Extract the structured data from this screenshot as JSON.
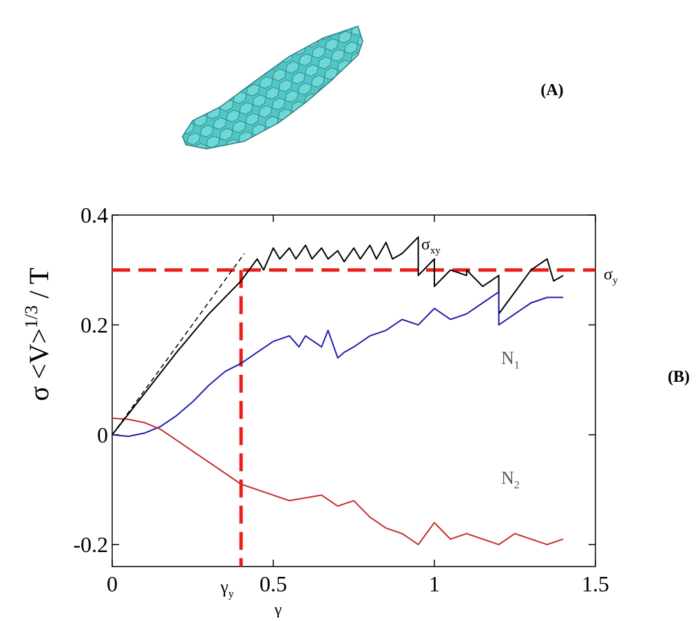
{
  "panel_labels": [
    "(A)",
    "(B)"
  ],
  "chart_data": {
    "type": "line",
    "ylabel": {
      "base": "σ <V>",
      "sup": "1/3",
      "tail": " / T"
    },
    "xlabel": "γ",
    "xlim": [
      0,
      1.5
    ],
    "ylim": [
      -0.24,
      0.4
    ],
    "xticks": [
      0,
      0.5,
      1,
      1.5
    ],
    "yticks": [
      -0.2,
      0,
      0.2,
      0.4
    ],
    "series": [
      {
        "color": "#000000",
        "label": {
          "base": "σ",
          "sub": "xy"
        },
        "x": [
          0,
          0.1,
          0.2,
          0.3,
          0.4,
          0.45,
          0.47,
          0.5,
          0.52,
          0.55,
          0.57,
          0.6,
          0.62,
          0.65,
          0.67,
          0.7,
          0.72,
          0.75,
          0.77,
          0.8,
          0.82,
          0.85,
          0.87,
          0.9,
          0.95,
          0.95,
          1.0,
          1.0,
          1.05,
          1.1,
          1.1,
          1.15,
          1.2,
          1.2,
          1.25,
          1.3,
          1.35,
          1.37,
          1.4
        ],
        "y": [
          0,
          0.075,
          0.15,
          0.22,
          0.28,
          0.32,
          0.3,
          0.34,
          0.32,
          0.34,
          0.32,
          0.345,
          0.32,
          0.34,
          0.32,
          0.335,
          0.315,
          0.34,
          0.32,
          0.345,
          0.32,
          0.35,
          0.32,
          0.33,
          0.36,
          0.29,
          0.32,
          0.27,
          0.3,
          0.29,
          0.3,
          0.27,
          0.29,
          0.22,
          0.26,
          0.3,
          0.32,
          0.28,
          0.29
        ]
      },
      {
        "color": "#1f1fa8",
        "label": {
          "base": "N",
          "sub": "1"
        },
        "x": [
          0,
          0.05,
          0.1,
          0.15,
          0.2,
          0.25,
          0.3,
          0.35,
          0.4,
          0.45,
          0.5,
          0.55,
          0.58,
          0.6,
          0.65,
          0.67,
          0.7,
          0.72,
          0.75,
          0.8,
          0.85,
          0.9,
          0.95,
          1.0,
          1.05,
          1.1,
          1.15,
          1.2,
          1.2,
          1.25,
          1.3,
          1.35,
          1.4
        ],
        "y": [
          0,
          -0.003,
          0.003,
          0.015,
          0.035,
          0.06,
          0.09,
          0.115,
          0.13,
          0.15,
          0.17,
          0.18,
          0.16,
          0.18,
          0.16,
          0.19,
          0.14,
          0.15,
          0.16,
          0.18,
          0.19,
          0.21,
          0.2,
          0.23,
          0.21,
          0.22,
          0.24,
          0.26,
          0.2,
          0.22,
          0.24,
          0.25,
          0.25
        ]
      },
      {
        "color": "#c0302c",
        "label": {
          "base": "N",
          "sub": "2"
        },
        "x": [
          0,
          0.05,
          0.1,
          0.15,
          0.2,
          0.25,
          0.3,
          0.35,
          0.4,
          0.45,
          0.5,
          0.55,
          0.6,
          0.65,
          0.7,
          0.75,
          0.8,
          0.85,
          0.9,
          0.95,
          1.0,
          1.05,
          1.1,
          1.15,
          1.2,
          1.25,
          1.3,
          1.35,
          1.4
        ],
        "y": [
          0.03,
          0.028,
          0.022,
          0.01,
          -0.01,
          -0.03,
          -0.05,
          -0.07,
          -0.09,
          -0.1,
          -0.11,
          -0.12,
          -0.115,
          -0.11,
          -0.13,
          -0.12,
          -0.15,
          -0.17,
          -0.18,
          -0.2,
          -0.16,
          -0.19,
          -0.18,
          -0.19,
          -0.2,
          -0.18,
          -0.19,
          -0.2,
          -0.19
        ]
      },
      {
        "color": "#000000",
        "dash": true,
        "x": [
          0,
          0.41
        ],
        "y": [
          0,
          0.33
        ]
      }
    ],
    "hlines": [
      {
        "value": 0.3,
        "color": "#e8201c",
        "label": {
          "base": "σ",
          "sub": "y"
        }
      }
    ],
    "vlines": [
      {
        "value": 0.4,
        "color": "#e8201c",
        "label": {
          "base": "γ",
          "sub": "y"
        }
      }
    ]
  }
}
